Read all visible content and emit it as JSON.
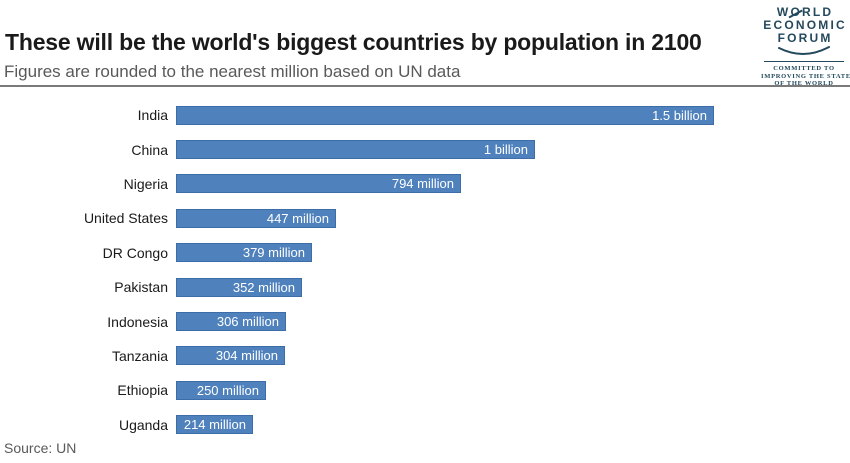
{
  "header": {
    "title": "These will be the world's biggest countries by population in 2100",
    "subtitle": "Figures are rounded to the nearest million based on UN data"
  },
  "logo": {
    "lines": [
      "WORLD",
      "ECONOMIC",
      "FORUM"
    ],
    "tagline_lines": [
      "COMMITTED TO",
      "IMPROVING THE STATE",
      "OF THE WORLD"
    ],
    "color": "#24495c"
  },
  "chart_data": {
    "type": "bar",
    "orientation": "horizontal",
    "title": "These will be the world's biggest countries by population in 2100",
    "subtitle": "Figures are rounded to the nearest million based on UN data",
    "categories": [
      "India",
      "China",
      "Nigeria",
      "United States",
      "DR Congo",
      "Pakistan",
      "Indonesia",
      "Tanzania",
      "Ethiopia",
      "Uganda"
    ],
    "values_millions": [
      1500,
      1000,
      794,
      447,
      379,
      352,
      306,
      304,
      250,
      214
    ],
    "value_labels": [
      "1.5 billion",
      "1 billion",
      "794 million",
      "447 million",
      "379 million",
      "352 million",
      "306 million",
      "304 million",
      "250 million",
      "214 million"
    ],
    "xlim_millions": [
      0,
      1500
    ],
    "grid": false,
    "legend": false,
    "bar_color": "#4f81bd",
    "value_label_color": "#ffffff",
    "source": "Source: UN"
  },
  "footer": {
    "source": "Source: UN"
  }
}
